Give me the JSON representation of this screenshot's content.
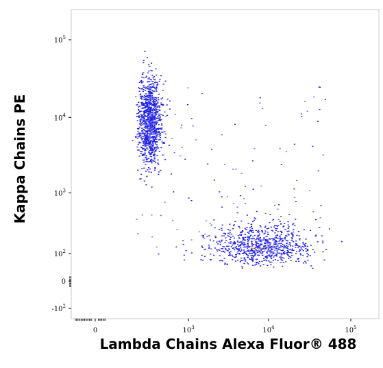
{
  "chart_data": {
    "type": "scatter",
    "title": "",
    "xlabel": "Lambda Chains Alexa Fluor® 488",
    "ylabel": "Kappa Chains PE",
    "x_scale": "biexponential",
    "y_scale": "biexponential",
    "x_ticks": [
      {
        "base": "0",
        "exp": "",
        "value": 0
      },
      {
        "base": "10",
        "exp": "3",
        "value": 1000
      },
      {
        "base": "10",
        "exp": "4",
        "value": 10000
      },
      {
        "base": "10",
        "exp": "5",
        "value": 100000
      }
    ],
    "y_ticks": [
      {
        "base": "10",
        "exp": "5",
        "value": 100000
      },
      {
        "base": "10",
        "exp": "4",
        "value": 10000
      },
      {
        "base": "10",
        "exp": "3",
        "value": 1000
      },
      {
        "base": "10",
        "exp": "2",
        "value": 100
      },
      {
        "base": "0",
        "exp": "",
        "value": 0
      },
      {
        "base": "-10",
        "exp": "2",
        "value": -100
      }
    ],
    "xlim": [
      -300,
      200000
    ],
    "ylim": [
      -300,
      200000
    ],
    "grid": false,
    "legend": "none",
    "series": [
      {
        "population": "kappa-positive cluster",
        "center": {
          "x": 280,
          "y": 9000
        },
        "spread": {
          "x": 0.09,
          "y": 0.28
        },
        "approx_events": 1100,
        "color": "#2020e0"
      },
      {
        "population": "lambda-positive cluster",
        "center": {
          "x": 8000,
          "y": 150
        },
        "spread": {
          "x": 0.32,
          "y": 0.2
        },
        "approx_events": 850,
        "color": "#2020e0"
      }
    ],
    "colors": {
      "low_density": "#2020e0",
      "mid_density": "#6a6aff",
      "high_density": "#f0b000"
    }
  }
}
